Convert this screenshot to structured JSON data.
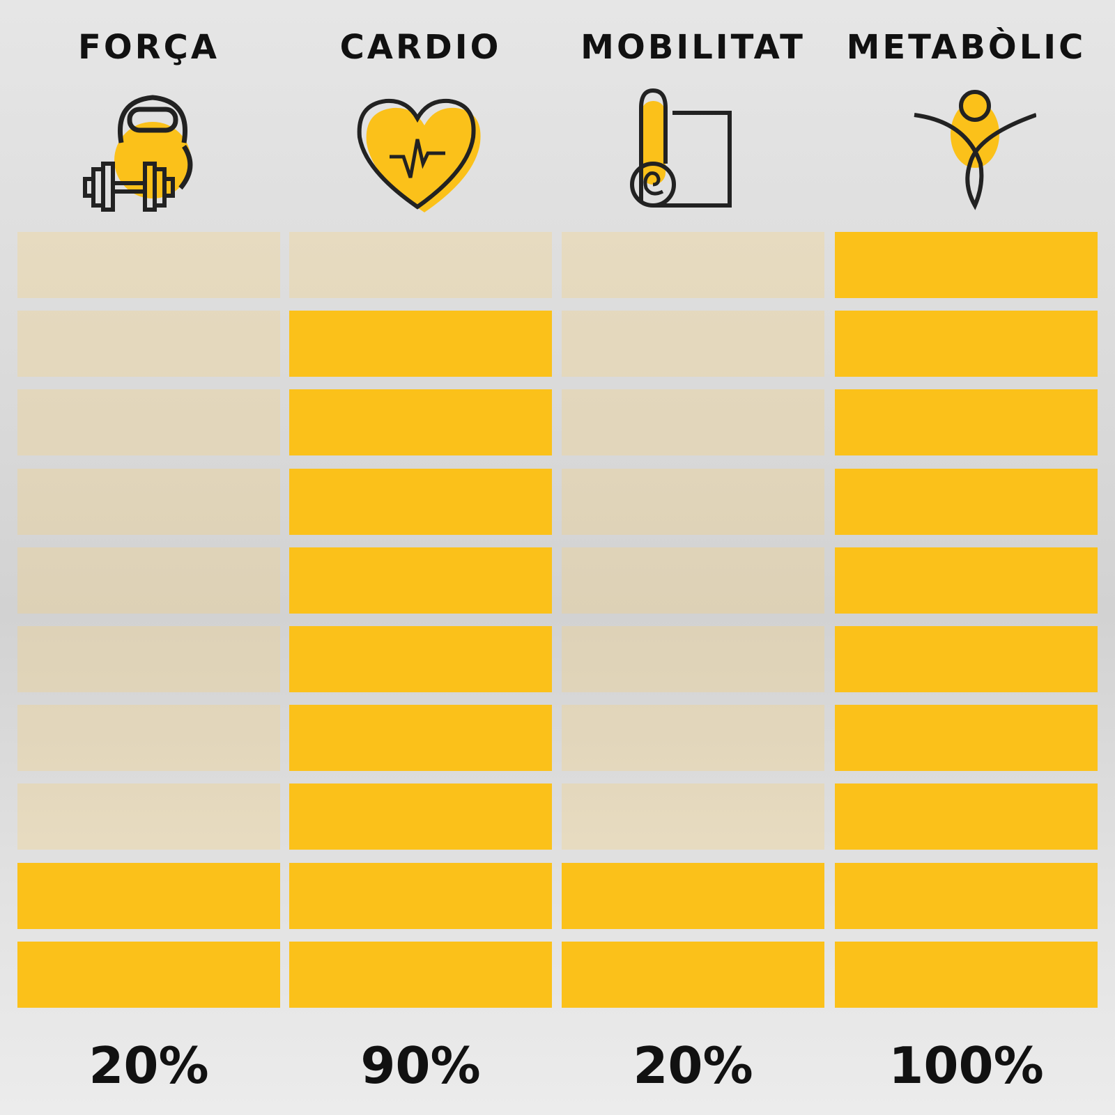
{
  "chart_data": {
    "type": "bar",
    "categories": [
      "FORÇA",
      "CARDIO",
      "MOBILITAT",
      "METABÒLIC"
    ],
    "values": [
      20,
      90,
      20,
      100
    ],
    "value_labels": [
      "20%",
      "90%",
      "20%",
      "100%"
    ],
    "segments": 10,
    "ylim": [
      0,
      100
    ],
    "colors": {
      "filled": "#fbc11a",
      "empty": "#f0e0b0"
    },
    "icons": [
      "kettlebell-dumbbell-icon",
      "heart-pulse-icon",
      "yoga-mat-icon",
      "person-stretch-icon"
    ]
  }
}
